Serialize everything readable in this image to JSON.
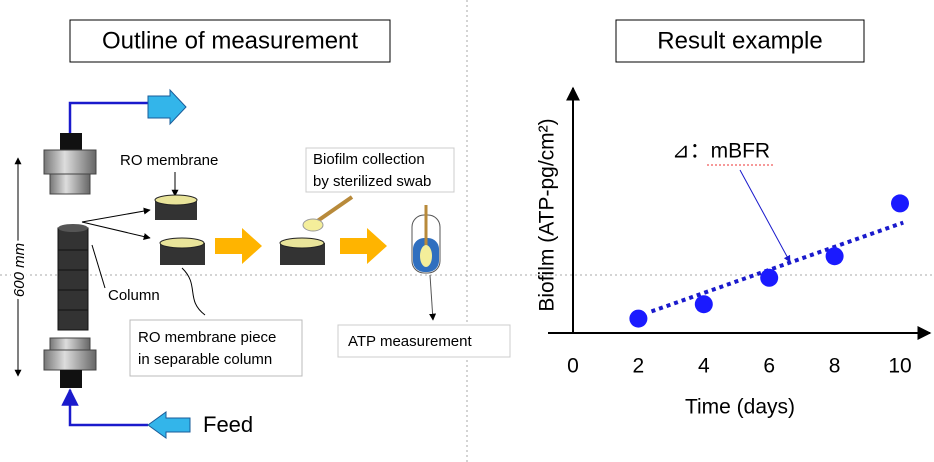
{
  "outline": {
    "title": "Outline of measurement",
    "height_label": "600 mm",
    "ro_membrane": "RO membrane",
    "swab_label": [
      "Biofilm collection",
      "by sterilized swab"
    ],
    "column": "Column",
    "piece_label": [
      "RO membrane piece",
      "in separable column"
    ],
    "atp": "ATP measurement",
    "feed": "Feed"
  },
  "chart_data": {
    "type": "scatter",
    "title": "Result example",
    "x_label": "Time (days)",
    "y_label": "Biofilm (ATP-pg/cm²)",
    "annotation": "⊿：mBFR",
    "x": [
      2,
      4,
      6,
      8,
      10
    ],
    "values": [
      0.6,
      1.2,
      2.3,
      3.2,
      5.4
    ],
    "color": "#1a1aff",
    "xlim": [
      0,
      10
    ],
    "ylim": [
      0,
      10
    ],
    "xticks": [
      0,
      2,
      4,
      6,
      8,
      10
    ],
    "trendline": {
      "x": [
        2.4,
        10.1
      ],
      "values": [
        0.9,
        4.6
      ],
      "color": "#1a1acc"
    }
  }
}
